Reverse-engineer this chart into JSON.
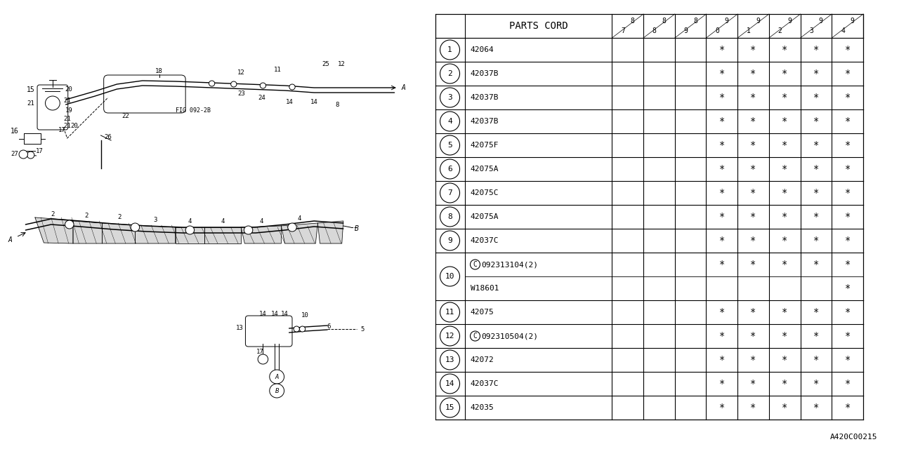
{
  "diagram_code": "A420C00215",
  "background_color": "#ffffff",
  "line_color": "#000000",
  "table": {
    "header_text": "PARTS CORD",
    "year_pairs": [
      [
        "8",
        "7"
      ],
      [
        "8",
        "8"
      ],
      [
        "8",
        "9"
      ],
      [
        "9",
        "0"
      ],
      [
        "9",
        "1"
      ],
      [
        "9",
        "2"
      ],
      [
        "9",
        "3"
      ],
      [
        "9",
        "4"
      ]
    ],
    "rows": [
      {
        "num": "1",
        "code": "42064",
        "c_prefix": false,
        "stars": [
          0,
          0,
          0,
          1,
          1,
          1,
          1,
          1
        ]
      },
      {
        "num": "2",
        "code": "42037B",
        "c_prefix": false,
        "stars": [
          0,
          0,
          0,
          1,
          1,
          1,
          1,
          1
        ]
      },
      {
        "num": "3",
        "code": "42037B",
        "c_prefix": false,
        "stars": [
          0,
          0,
          0,
          1,
          1,
          1,
          1,
          1
        ]
      },
      {
        "num": "4",
        "code": "42037B",
        "c_prefix": false,
        "stars": [
          0,
          0,
          0,
          1,
          1,
          1,
          1,
          1
        ]
      },
      {
        "num": "5",
        "code": "42075F",
        "c_prefix": false,
        "stars": [
          0,
          0,
          0,
          1,
          1,
          1,
          1,
          1
        ]
      },
      {
        "num": "6",
        "code": "42075A",
        "c_prefix": false,
        "stars": [
          0,
          0,
          0,
          1,
          1,
          1,
          1,
          1
        ]
      },
      {
        "num": "7",
        "code": "42075C",
        "c_prefix": false,
        "stars": [
          0,
          0,
          0,
          1,
          1,
          1,
          1,
          1
        ]
      },
      {
        "num": "8",
        "code": "42075A",
        "c_prefix": false,
        "stars": [
          0,
          0,
          0,
          1,
          1,
          1,
          1,
          1
        ]
      },
      {
        "num": "9",
        "code": "42037C",
        "c_prefix": false,
        "stars": [
          0,
          0,
          0,
          1,
          1,
          1,
          1,
          1
        ]
      },
      {
        "num": "10",
        "code": "092313104(2)",
        "c_prefix": true,
        "stars": [
          0,
          0,
          0,
          1,
          1,
          1,
          1,
          1
        ],
        "sub": {
          "code": "W18601",
          "c_prefix": false,
          "stars": [
            0,
            0,
            0,
            0,
            0,
            0,
            0,
            1
          ]
        }
      },
      {
        "num": "11",
        "code": "42075",
        "c_prefix": false,
        "stars": [
          0,
          0,
          0,
          1,
          1,
          1,
          1,
          1
        ]
      },
      {
        "num": "12",
        "code": "092310504(2)",
        "c_prefix": true,
        "stars": [
          0,
          0,
          0,
          1,
          1,
          1,
          1,
          1
        ]
      },
      {
        "num": "13",
        "code": "42072",
        "c_prefix": false,
        "stars": [
          0,
          0,
          0,
          1,
          1,
          1,
          1,
          1
        ]
      },
      {
        "num": "14",
        "code": "42037C",
        "c_prefix": false,
        "stars": [
          0,
          0,
          0,
          1,
          1,
          1,
          1,
          1
        ]
      },
      {
        "num": "15",
        "code": "42035",
        "c_prefix": false,
        "stars": [
          0,
          0,
          0,
          1,
          1,
          1,
          1,
          1
        ]
      }
    ]
  }
}
